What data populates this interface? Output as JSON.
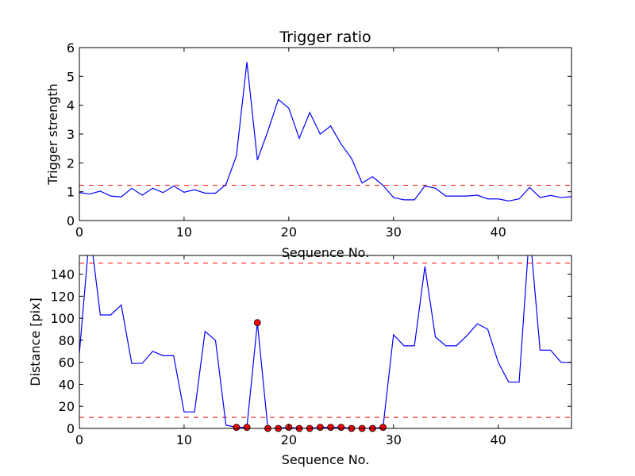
{
  "chart_data": [
    {
      "type": "line",
      "title": "Trigger ratio",
      "xlabel": "Sequence No.",
      "ylabel": "Trigger strength",
      "xlim": [
        0,
        47
      ],
      "ylim": [
        0,
        6
      ],
      "xticks": [
        0,
        10,
        20,
        30,
        40
      ],
      "yticks": [
        0,
        1,
        2,
        3,
        4,
        5,
        6
      ],
      "grid": false,
      "threshold_lines": [
        {
          "y": 1.22,
          "color": "#ff0000",
          "style": "dashed"
        }
      ],
      "series": [
        {
          "color": "#0000ff",
          "x": [
            0,
            1,
            2,
            3,
            4,
            5,
            6,
            7,
            8,
            9,
            10,
            11,
            12,
            13,
            14,
            15,
            16,
            17,
            18,
            19,
            20,
            21,
            22,
            23,
            24,
            25,
            26,
            27,
            28,
            29,
            30,
            31,
            32,
            33,
            34,
            35,
            36,
            37,
            38,
            39,
            40,
            41,
            42,
            43,
            44,
            45,
            46,
            47
          ],
          "y": [
            0.97,
            0.92,
            1.02,
            0.85,
            0.82,
            1.12,
            0.88,
            1.12,
            0.97,
            1.2,
            0.98,
            1.07,
            0.95,
            0.95,
            1.25,
            2.25,
            5.5,
            2.1,
            3.1,
            4.2,
            3.9,
            2.85,
            3.75,
            3.0,
            3.28,
            2.65,
            2.15,
            1.3,
            1.52,
            1.22,
            0.8,
            0.72,
            0.72,
            1.2,
            1.12,
            0.85,
            0.85,
            0.85,
            0.88,
            0.75,
            0.75,
            0.68,
            0.75,
            1.15,
            0.8,
            0.87,
            0.8,
            0.83
          ]
        }
      ]
    },
    {
      "type": "line",
      "title": "",
      "xlabel": "Sequence No.",
      "ylabel": "Distance [pix]",
      "xlim": [
        0,
        47
      ],
      "ylim": [
        0,
        157
      ],
      "xticks": [
        0,
        10,
        20,
        30,
        40
      ],
      "yticks": [
        0,
        20,
        40,
        60,
        80,
        100,
        120,
        140
      ],
      "grid": false,
      "threshold_lines": [
        {
          "y": 150,
          "color": "#ff0000",
          "style": "dashed"
        },
        {
          "y": 10,
          "color": "#ff0000",
          "style": "dashed"
        }
      ],
      "series": [
        {
          "color": "#0000ff",
          "x": [
            0,
            1,
            2,
            3,
            4,
            5,
            6,
            7,
            8,
            9,
            10,
            11,
            12,
            13,
            14,
            15,
            16,
            17,
            18,
            19,
            20,
            21,
            22,
            23,
            24,
            25,
            26,
            27,
            28,
            29,
            30,
            31,
            32,
            33,
            34,
            35,
            36,
            37,
            38,
            39,
            40,
            41,
            42,
            43,
            44,
            45,
            46,
            47
          ],
          "y": [
            68,
            180,
            103,
            103,
            112,
            59,
            59,
            70,
            66,
            66,
            15,
            15,
            88,
            80,
            3,
            1,
            1,
            96,
            0,
            0,
            1,
            0,
            0,
            1,
            1,
            1,
            0,
            0,
            0,
            1,
            85,
            75,
            75,
            147,
            83,
            75,
            75,
            84,
            95,
            90,
            60,
            42,
            42,
            180,
            71,
            71,
            60,
            60
          ]
        }
      ],
      "markers": {
        "color": "#ff0000",
        "x": [
          15,
          16,
          17,
          18,
          19,
          20,
          21,
          22,
          23,
          24,
          25,
          26,
          27,
          28,
          29
        ],
        "y": [
          1,
          1,
          96,
          0,
          0,
          1,
          0,
          0,
          1,
          1,
          1,
          0,
          0,
          0,
          1
        ]
      }
    }
  ]
}
